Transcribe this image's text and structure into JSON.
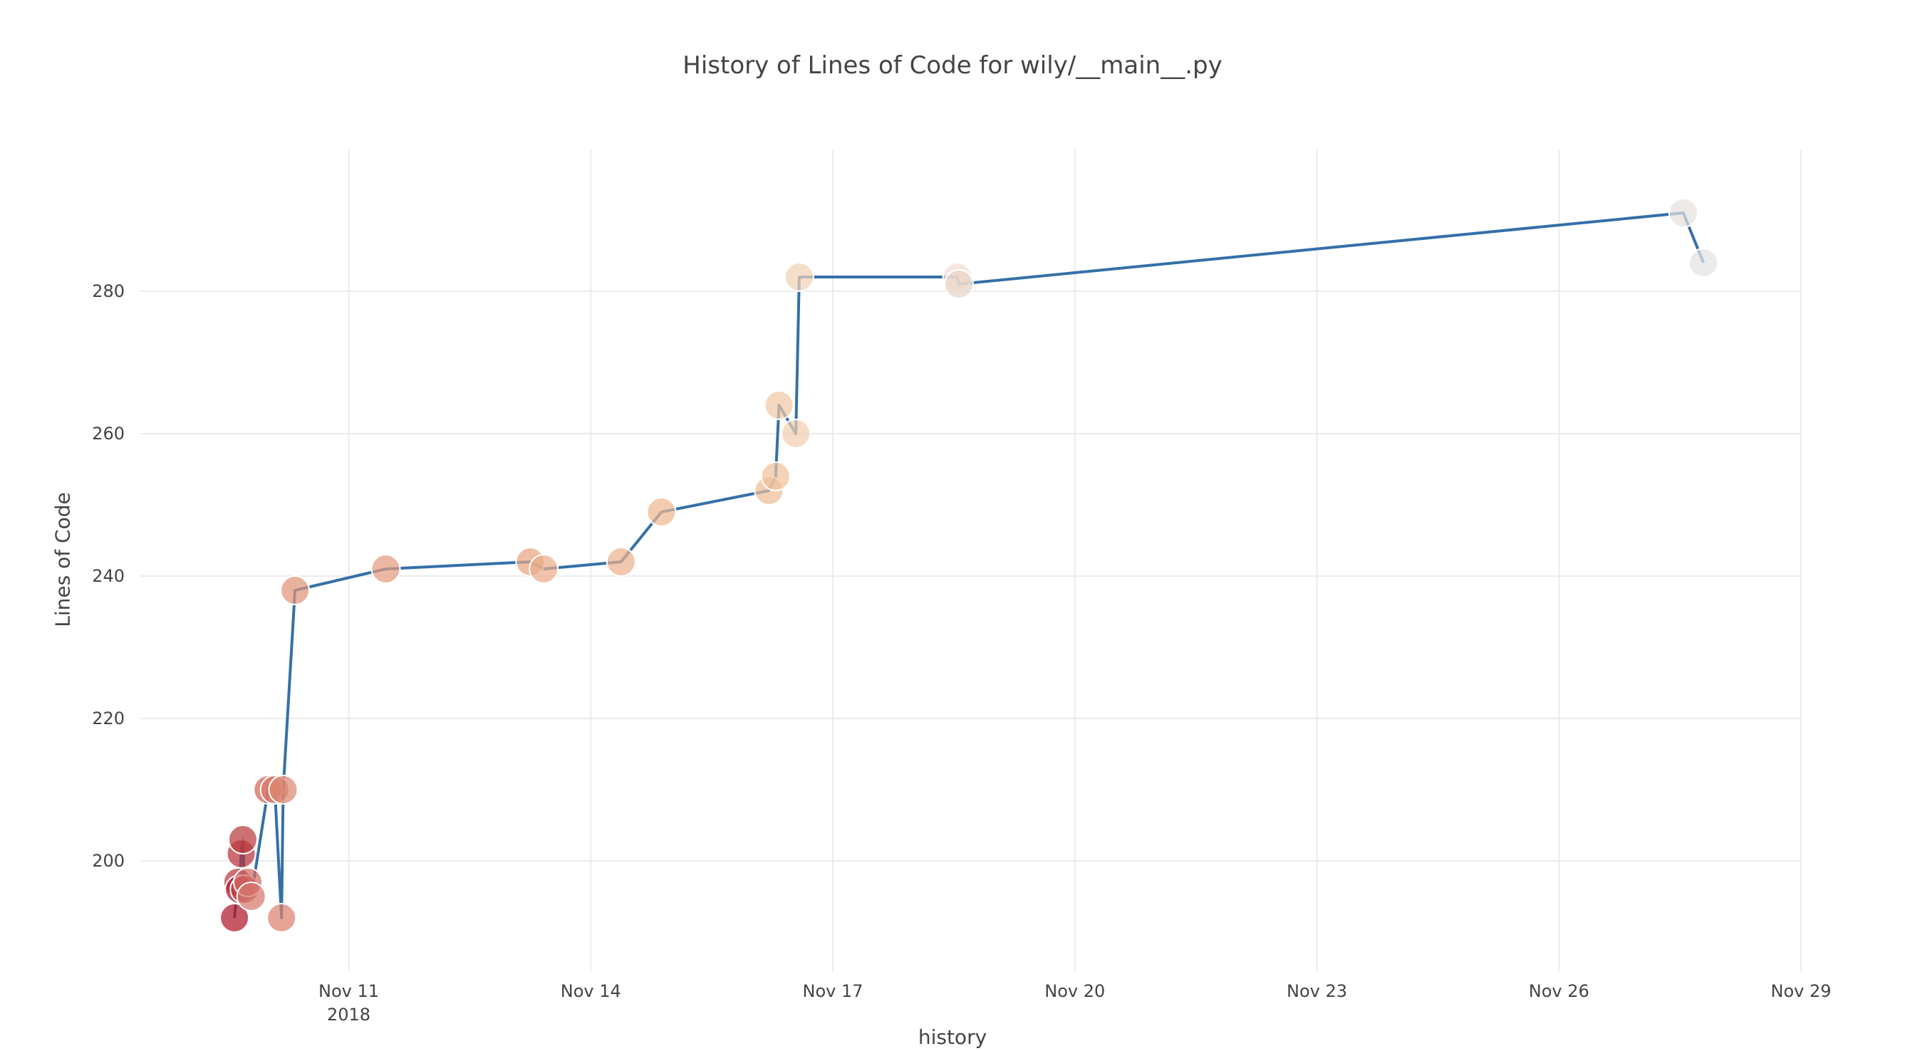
{
  "chart_data": {
    "type": "scatter",
    "title": "History of Lines of Code for wily/__main__.py",
    "xlabel": "history",
    "ylabel": "Lines of Code",
    "x_axis": {
      "kind": "date",
      "range": [
        "2018-11-08T10:00",
        "2018-11-29T00:00"
      ],
      "ticks": [
        {
          "value": "2018-11-11",
          "label": "Nov 11",
          "sublabel": "2018"
        },
        {
          "value": "2018-11-14",
          "label": "Nov 14",
          "sublabel": ""
        },
        {
          "value": "2018-11-17",
          "label": "Nov 17",
          "sublabel": ""
        },
        {
          "value": "2018-11-20",
          "label": "Nov 20",
          "sublabel": ""
        },
        {
          "value": "2018-11-23",
          "label": "Nov 23",
          "sublabel": ""
        },
        {
          "value": "2018-11-26",
          "label": "Nov 26",
          "sublabel": ""
        },
        {
          "value": "2018-11-29",
          "label": "Nov 29",
          "sublabel": ""
        }
      ]
    },
    "y_axis": {
      "range": [
        184.5,
        299.9
      ],
      "ticks": [
        200,
        220,
        240,
        260,
        280
      ]
    },
    "grid": true,
    "line_color": "#3570a8",
    "series": [
      {
        "points": [
          {
            "x": "2018-11-09T14:00",
            "y": 192,
            "color": "#b2182b"
          },
          {
            "x": "2018-11-09T15:00",
            "y": 197,
            "color": "#bd3a3e"
          },
          {
            "x": "2018-11-09T15:30",
            "y": 196,
            "color": "#b2182b"
          },
          {
            "x": "2018-11-09T16:00",
            "y": 201,
            "color": "#b8323a"
          },
          {
            "x": "2018-11-09T16:30",
            "y": 203,
            "color": "#ba3a3e"
          },
          {
            "x": "2018-11-09T17:00",
            "y": 196,
            "color": "#c14a4b"
          },
          {
            "x": "2018-11-09T18:00",
            "y": 197,
            "color": "#d26a64"
          },
          {
            "x": "2018-11-09T19:00",
            "y": 195,
            "color": "#d6796f"
          },
          {
            "x": "2018-11-10T00:00",
            "y": 210,
            "color": "#d4655a"
          },
          {
            "x": "2018-11-10T02:00",
            "y": 210,
            "color": "#da7a68"
          },
          {
            "x": "2018-11-10T04:00",
            "y": 192,
            "color": "#dc8270"
          },
          {
            "x": "2018-11-10T04:30",
            "y": 210,
            "color": "#dd8873"
          },
          {
            "x": "2018-11-10T08:00",
            "y": 238,
            "color": "#e0947a"
          },
          {
            "x": "2018-11-11T11:00",
            "y": 241,
            "color": "#e39d7f"
          },
          {
            "x": "2018-11-13T06:00",
            "y": 242,
            "color": "#e8a683"
          },
          {
            "x": "2018-11-13T10:00",
            "y": 241,
            "color": "#eaad89"
          },
          {
            "x": "2018-11-14T09:00",
            "y": 242,
            "color": "#ecb28e"
          },
          {
            "x": "2018-11-14T21:00",
            "y": 249,
            "color": "#eeb892"
          },
          {
            "x": "2018-11-16T05:00",
            "y": 252,
            "color": "#efbc96"
          },
          {
            "x": "2018-11-16T07:00",
            "y": 254,
            "color": "#f0c29e"
          },
          {
            "x": "2018-11-16T08:00",
            "y": 264,
            "color": "#f1c7a4"
          },
          {
            "x": "2018-11-16T13:00",
            "y": 260,
            "color": "#f2cfb0"
          },
          {
            "x": "2018-11-16T14:00",
            "y": 282,
            "color": "#f3d2b6"
          },
          {
            "x": "2018-11-18T13:00",
            "y": 282,
            "color": "#f2dfd3"
          },
          {
            "x": "2018-11-18T13:30",
            "y": 281,
            "color": "#e8d5c8"
          },
          {
            "x": "2018-11-27T13:00",
            "y": 291,
            "color": "#e6e0de"
          },
          {
            "x": "2018-11-27T19:00",
            "y": 284,
            "color": "#e3e3e3"
          }
        ]
      }
    ]
  }
}
